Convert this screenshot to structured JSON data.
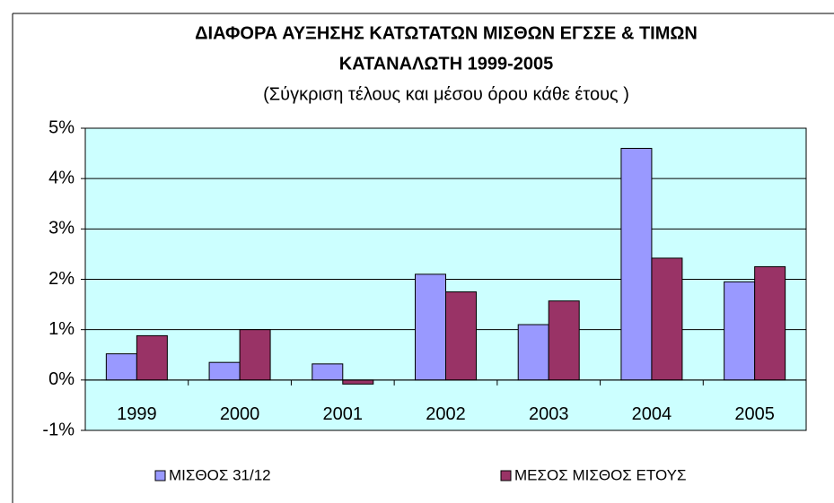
{
  "chart_data": {
    "type": "bar",
    "title": [
      "ΔΙΑΦΟΡΑ ΑΥΞΗΣΗΣ ΚΑΤΩΤΑΤΩΝ ΜΙΣΘΩΝ ΕΓΣΣΕ & ΤΙΜΩΝ",
      "ΚΑΤΑΝΑΛΩΤΗ 1999-2005"
    ],
    "subtitle": "(Σύγκριση τέλους και μέσου όρου κάθε έτους )",
    "categories": [
      "1999",
      "2000",
      "2001",
      "2002",
      "2003",
      "2004",
      "2005"
    ],
    "series": [
      {
        "name": "ΜΙΣΘΟΣ 31/12",
        "color": "#9999ff",
        "values": [
          0.52,
          0.35,
          0.32,
          2.1,
          1.1,
          4.6,
          1.95
        ]
      },
      {
        "name": "ΜΕΣΟΣ ΜΙΣΘΟΣ ΕΤΟΥΣ",
        "color": "#993366",
        "values": [
          0.88,
          1.0,
          -0.08,
          1.75,
          1.57,
          2.42,
          2.25
        ]
      }
    ],
    "ylim": [
      -1,
      5
    ],
    "yticks": [
      {
        "value": -1,
        "label": "-1%"
      },
      {
        "value": 0,
        "label": "0%"
      },
      {
        "value": 1,
        "label": "1%"
      },
      {
        "value": 2,
        "label": "2%"
      },
      {
        "value": 3,
        "label": "3%"
      },
      {
        "value": 4,
        "label": "4%"
      },
      {
        "value": 5,
        "label": "5%"
      }
    ],
    "grid": true,
    "plot_background": "#ccffff",
    "legend": "bottom"
  }
}
